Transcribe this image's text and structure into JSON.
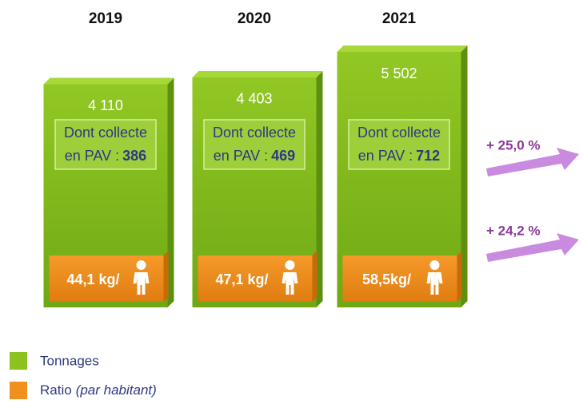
{
  "chart_data": {
    "type": "bar",
    "categories": [
      "2019",
      "2020",
      "2021"
    ],
    "series": [
      {
        "name": "Tonnages",
        "color": "#8cc21f",
        "values": [
          4110,
          4403,
          5502
        ],
        "value_labels": [
          "4 110",
          "4 403",
          "5 502"
        ]
      },
      {
        "name": "Ratio",
        "color": "#f0901e",
        "values": [
          44.1,
          47.1,
          58.5
        ],
        "value_labels": [
          "44,1 kg/",
          "47,1 kg/",
          "58,5kg/"
        ]
      }
    ],
    "pav": {
      "line1": "Dont collecte",
      "line2": "en PAV :",
      "values": [
        386,
        469,
        712
      ]
    },
    "annotations": [
      "+ 25,0 %",
      "+ 24,2 %"
    ],
    "legend_subtitle": "(par habitant)"
  }
}
